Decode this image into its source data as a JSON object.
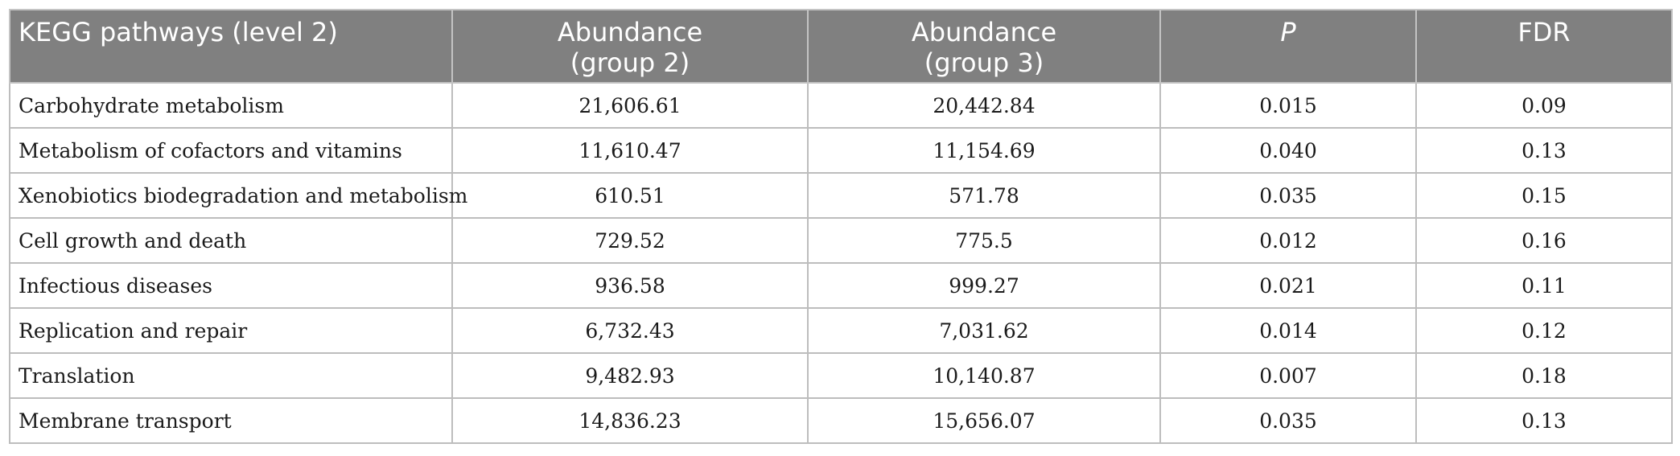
{
  "table": {
    "headers": [
      {
        "line1": "KEGG pathways (level 2)",
        "line2": ""
      },
      {
        "line1": "Abundance",
        "line2": "(group 2)"
      },
      {
        "line1": "Abundance",
        "line2": "(group 3)"
      },
      {
        "line1": "P",
        "line2": ""
      },
      {
        "line1": "FDR",
        "line2": ""
      }
    ],
    "rows": [
      {
        "pathway": "Carbohydrate metabolism",
        "group2": "21,606.61",
        "group3": "20,442.84",
        "p": "0.015",
        "fdr": "0.09"
      },
      {
        "pathway": "Metabolism of cofactors and vitamins",
        "group2": "11,610.47",
        "group3": "11,154.69",
        "p": "0.040",
        "fdr": "0.13"
      },
      {
        "pathway": "Xenobiotics biodegradation and metabolism",
        "group2": "610.51",
        "group3": "571.78",
        "p": "0.035",
        "fdr": "0.15"
      },
      {
        "pathway": "Cell growth and death",
        "group2": "729.52",
        "group3": "775.5",
        "p": "0.012",
        "fdr": "0.16"
      },
      {
        "pathway": "Infectious diseases",
        "group2": "936.58",
        "group3": "999.27",
        "p": "0.021",
        "fdr": "0.11"
      },
      {
        "pathway": "Replication and repair",
        "group2": "6,732.43",
        "group3": "7,031.62",
        "p": "0.014",
        "fdr": "0.12"
      },
      {
        "pathway": "Translation",
        "group2": "9,482.93",
        "group3": "10,140.87",
        "p": "0.007",
        "fdr": "0.18"
      },
      {
        "pathway": "Membrane transport",
        "group2": "14,836.23",
        "group3": "15,656.07",
        "p": "0.035",
        "fdr": "0.13"
      }
    ]
  }
}
